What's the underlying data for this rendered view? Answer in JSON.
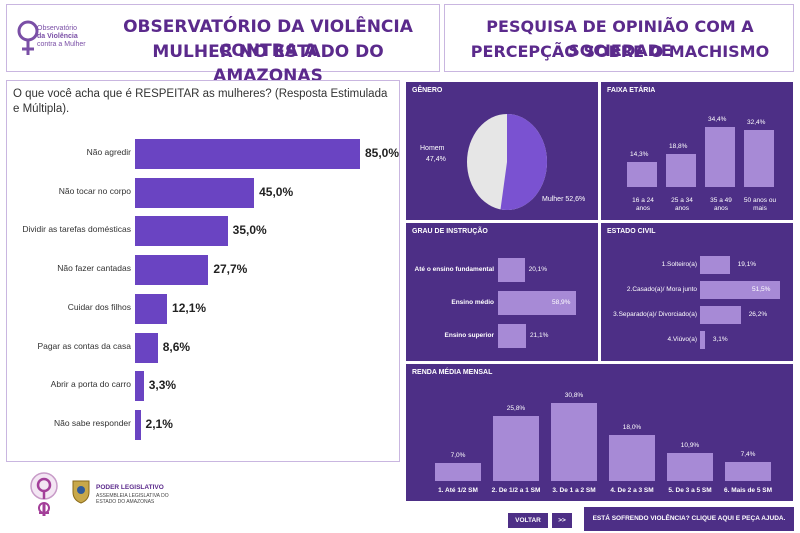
{
  "header": {
    "logo_lines": [
      "Observatório",
      "da Violência",
      "contra a Mulher"
    ],
    "left_title_line1": "OBSERVATÓRIO DA VIOLÊNCIA CONTRA A",
    "left_title_line2": "MULHER NO ESTADO DO AMAZONAS",
    "right_title_line1": "PESQUISA DE OPINIÃO COM A SOCIEDADE",
    "right_title_line2": "PERCEPÇÃO SOBRE O MACHISMO"
  },
  "left": {
    "question": "O que você acha que é RESPEITAR as mulheres? (Resposta Estimulada e Múltipla).",
    "items": [
      {
        "label": "Não agredir",
        "value": 85.0,
        "text": "85,0%"
      },
      {
        "label": "Não tocar no corpo",
        "value": 45.0,
        "text": "45,0%"
      },
      {
        "label": "Dividir as tarefas domésticas",
        "value": 35.0,
        "text": "35,0%"
      },
      {
        "label": "Não fazer cantadas",
        "value": 27.7,
        "text": "27,7%"
      },
      {
        "label": "Cuidar dos filhos",
        "value": 12.1,
        "text": "12,1%"
      },
      {
        "label": "Pagar as contas da casa",
        "value": 8.6,
        "text": "8,6%"
      },
      {
        "label": "Abrir a porta do carro",
        "value": 3.3,
        "text": "3,3%"
      },
      {
        "label": "Não sabe responder",
        "value": 2.1,
        "text": "2,1%"
      }
    ]
  },
  "genero": {
    "title": "GÊNERO",
    "homem_label": "Homem",
    "homem_text": "47,4%",
    "homem_value": 47.4,
    "mulher_text": "Mulher 52,6%",
    "mulher_value": 52.6
  },
  "faixa": {
    "title": "FAIXA ETÁRIA",
    "items": [
      {
        "label1": "16 a 24",
        "label2": "anos",
        "value": 14.3,
        "text": "14,3%"
      },
      {
        "label1": "25 a 34",
        "label2": "anos",
        "value": 18.8,
        "text": "18,8%"
      },
      {
        "label1": "35 a 49",
        "label2": "anos",
        "value": 34.4,
        "text": "34,4%"
      },
      {
        "label1": "50 anos ou",
        "label2": "mais",
        "value": 32.4,
        "text": "32,4%"
      }
    ]
  },
  "grau": {
    "title": "GRAU DE INSTRUÇÃO",
    "items": [
      {
        "label": "Até o ensino fundamental",
        "value": 20.1,
        "text": "20,1%"
      },
      {
        "label": "Ensino médio",
        "value": 58.9,
        "text": "58,9%"
      },
      {
        "label": "Ensino superior",
        "value": 21.1,
        "text": "21,1%"
      }
    ]
  },
  "civil": {
    "title": "ESTADO CIVIL",
    "items": [
      {
        "label": "1.Solteiro(a)",
        "value": 19.1,
        "text": "19,1%"
      },
      {
        "label": "2.Casado(a)/ Mora junto",
        "value": 51.5,
        "text": "51,5%"
      },
      {
        "label": "3.Separado(a)/ Divorciado(a)",
        "value": 26.2,
        "text": "26,2%"
      },
      {
        "label": "4.Viúvo(a)",
        "value": 3.1,
        "text": "3,1%"
      }
    ]
  },
  "renda": {
    "title": "RENDA MÉDIA MENSAL",
    "items": [
      {
        "label": "1. Até 1/2 SM",
        "value": 7.0,
        "text": "7,0%"
      },
      {
        "label": "2. De 1/2 a 1 SM",
        "value": 25.8,
        "text": "25,8%"
      },
      {
        "label": "3. De 1 a 2 SM",
        "value": 30.8,
        "text": "30,8%"
      },
      {
        "label": "4. De 2 a 3 SM",
        "value": 18.0,
        "text": "18,0%"
      },
      {
        "label": "5. De 3 a 5 SM",
        "value": 10.9,
        "text": "10,9%"
      },
      {
        "label": "6. Mais de 5 SM",
        "value": 7.4,
        "text": "7,4%"
      }
    ]
  },
  "footer": {
    "voltar": "VOLTAR",
    "next": ">>",
    "help": "ESTÁ SOFRENDO VIOLÊNCIA? CLIQUE AQUI E PEÇA AJUDA.",
    "poder": "PODER LEGISLATIVO",
    "assembleia_1": "ASSEMBLEIA LEGISLATIVA DO",
    "assembleia_2": "ESTADO DO AMAZONAS"
  },
  "colors": {
    "accent": "#4d2f86",
    "bar": "#6a44c2",
    "light_bar": "#a78ad6",
    "pie_grey": "#e6e6e6"
  }
}
